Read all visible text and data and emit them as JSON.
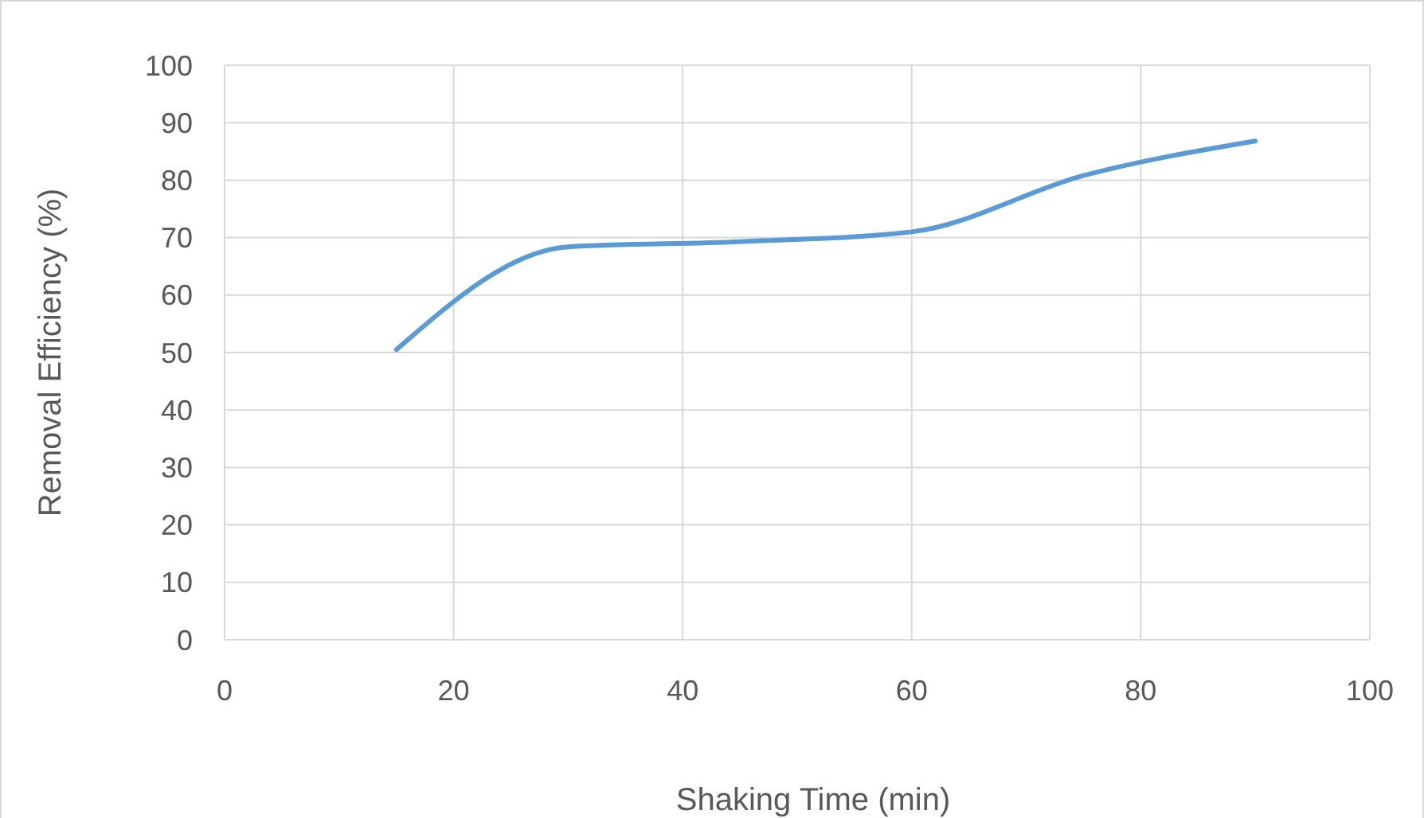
{
  "chart_data": {
    "type": "line",
    "xlabel": "Shaking Time (min)",
    "ylabel": "Removal Efficiency (%)",
    "x": [
      15,
      30,
      45,
      60,
      75,
      90
    ],
    "series": [
      {
        "color": "#5b9bd5",
        "values": [
          50.5,
          68.4,
          69.3,
          71.0,
          80.8,
          86.8
        ]
      }
    ],
    "xlim": [
      0,
      100
    ],
    "xticks": [
      0,
      20,
      40,
      60,
      80,
      100
    ],
    "ylim": [
      0,
      100
    ],
    "yticks": [
      0,
      10,
      20,
      30,
      40,
      50,
      60,
      70,
      80,
      90,
      100
    ],
    "grid": true,
    "marker": "none",
    "line_style": "solid"
  }
}
